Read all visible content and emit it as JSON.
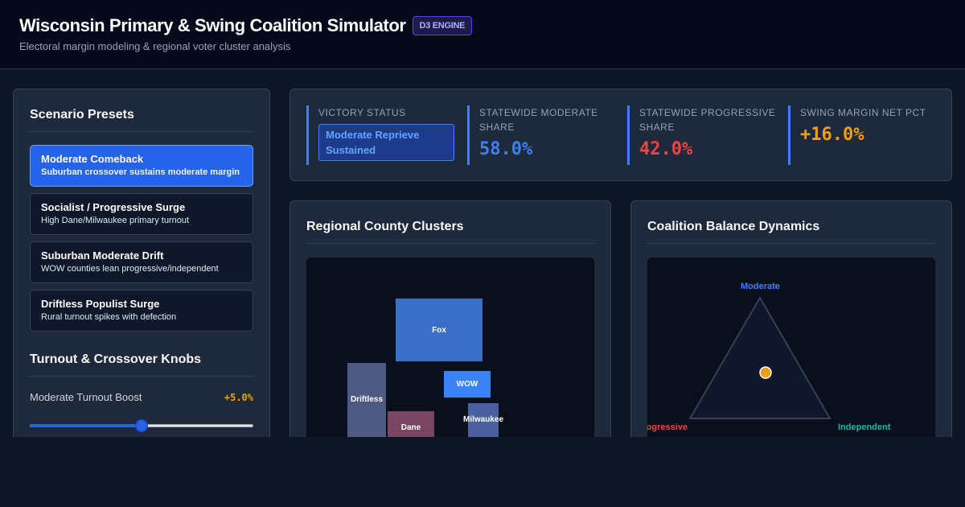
{
  "header": {
    "title": "Wisconsin Primary & Swing Coalition Simulator",
    "badge": "D3 ENGINE",
    "subtitle": "Electoral margin modeling & regional voter cluster analysis"
  },
  "sidebar": {
    "presets_title": "Scenario Presets",
    "presets": [
      {
        "name": "Moderate Comeback",
        "desc": "Suburban crossover sustains moderate margin",
        "active": true
      },
      {
        "name": "Socialist / Progressive Surge",
        "desc": "High Dane/Milwaukee primary turnout",
        "active": false
      },
      {
        "name": "Suburban Moderate Drift",
        "desc": "WOW counties lean progressive/independent",
        "active": false
      },
      {
        "name": "Driftless Populist Surge",
        "desc": "Rural turnout spikes with defection",
        "active": false
      }
    ],
    "knobs_title": "Turnout & Crossover Knobs",
    "knobs": [
      {
        "label": "Moderate Turnout Boost",
        "value_text": "+5.0%",
        "fraction": 0.5
      }
    ]
  },
  "stats": {
    "victory": {
      "label": "VICTORY STATUS",
      "value": "Moderate Reprieve Sustained"
    },
    "moderate": {
      "label": "STATEWIDE MODERATE SHARE",
      "value": "58.0%"
    },
    "progressive": {
      "label": "STATEWIDE PROGRESSIVE SHARE",
      "value": "42.0%"
    },
    "swing": {
      "label": "SWING MARGIN NET PCT",
      "value": "+16.0%"
    }
  },
  "colors": {
    "moderate": "#3b82f6",
    "progressive": "#ef4444",
    "swing": "#f59e0b",
    "independent": "#14b8a6"
  },
  "map": {
    "title": "Regional County Clusters",
    "clusters": [
      {
        "name": "Fox",
        "color": "#3a6fc7"
      },
      {
        "name": "WOW",
        "color": "#3b82f6"
      },
      {
        "name": "Driftless",
        "color": "#4f5a82"
      },
      {
        "name": "Dane",
        "color": "#7a4560"
      },
      {
        "name": "Milwaukee",
        "color": "#4a5f9e"
      }
    ]
  },
  "coalition": {
    "title": "Coalition Balance Dynamics",
    "vertices": {
      "top": "Moderate",
      "left": "Progressive",
      "right": "Independent"
    }
  }
}
